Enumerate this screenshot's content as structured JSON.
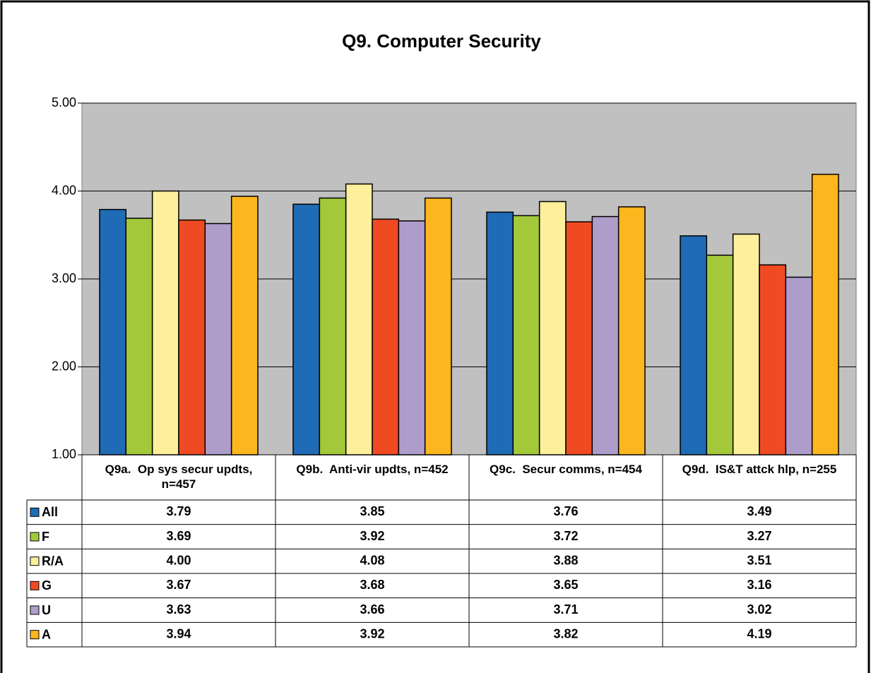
{
  "chart_data": {
    "type": "bar",
    "title": "Q9. Computer Security",
    "categories": [
      "Q9a.  Op sys secur updts, n=457",
      "Q9b.  Anti-vir updts, n=452",
      "Q9c.  Secur comms, n=454",
      "Q9d.  IS&T attck hlp, n=255"
    ],
    "series": [
      {
        "name": "All",
        "color": "#1f6bb5",
        "values": [
          3.79,
          3.85,
          3.76,
          3.49
        ],
        "value_labels": [
          "3.79",
          "3.85",
          "3.76",
          "3.49"
        ]
      },
      {
        "name": "F",
        "color": "#a3c93a",
        "values": [
          3.69,
          3.92,
          3.72,
          3.27
        ],
        "value_labels": [
          "3.69",
          "3.92",
          "3.72",
          "3.27"
        ]
      },
      {
        "name": "R/A",
        "color": "#fdef9b",
        "values": [
          4.0,
          4.08,
          3.88,
          3.51
        ],
        "value_labels": [
          "4.00",
          "4.08",
          "3.88",
          "3.51"
        ]
      },
      {
        "name": "G",
        "color": "#f04a23",
        "values": [
          3.67,
          3.68,
          3.65,
          3.16
        ],
        "value_labels": [
          "3.67",
          "3.68",
          "3.65",
          "3.16"
        ]
      },
      {
        "name": "U",
        "color": "#ae9dcb",
        "values": [
          3.63,
          3.66,
          3.71,
          3.02
        ],
        "value_labels": [
          "3.63",
          "3.66",
          "3.71",
          "3.02"
        ]
      },
      {
        "name": "A",
        "color": "#fdb61e",
        "values": [
          3.94,
          3.92,
          3.82,
          4.19
        ],
        "value_labels": [
          "3.94",
          "3.92",
          "3.82",
          "4.19"
        ]
      }
    ],
    "ylim": [
      1,
      5
    ],
    "yticks": [
      {
        "value": 1,
        "label": "1.00"
      },
      {
        "value": 2,
        "label": "2.00"
      },
      {
        "value": 3,
        "label": "3.00"
      },
      {
        "value": 4,
        "label": "4.00"
      },
      {
        "value": 5,
        "label": "5.00"
      }
    ],
    "grid": true,
    "plot_background": "#c0c0c0"
  }
}
